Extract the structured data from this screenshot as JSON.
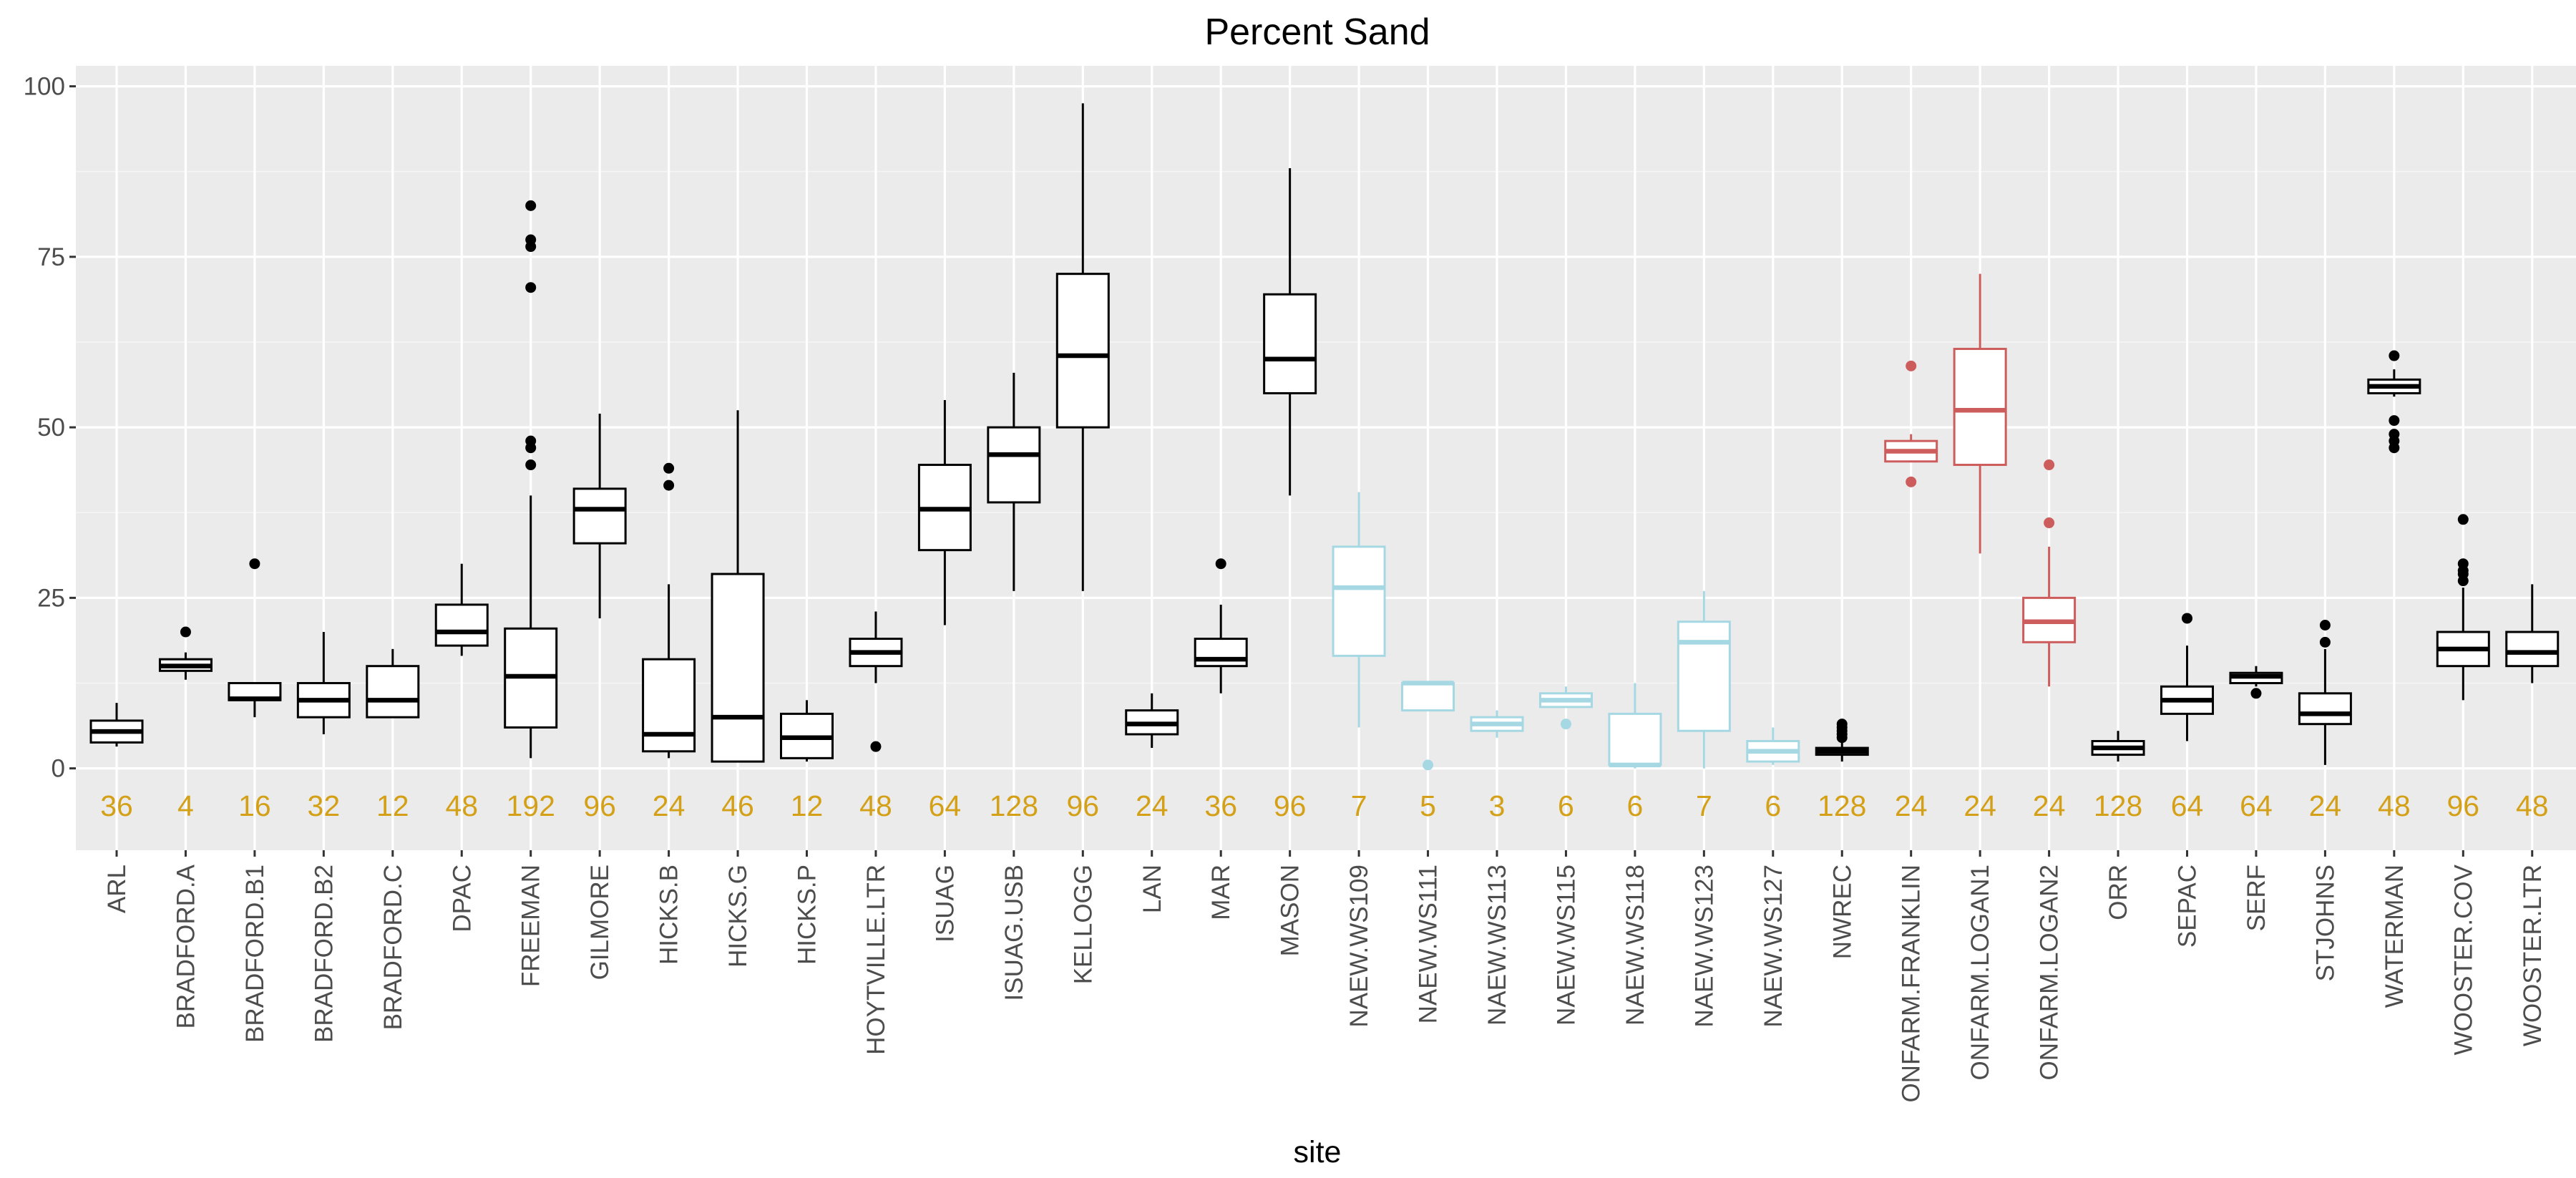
{
  "chart_data": {
    "type": "box",
    "title": "Percent Sand",
    "xlabel": "site",
    "ylabel": "",
    "ylim": [
      -12,
      103
    ],
    "yticks": [
      0,
      25,
      50,
      75,
      100
    ],
    "grid": true,
    "colors": {
      "panel": "#ebebeb",
      "grid_major": "#ffffff",
      "grid_minor": "#f5f5f5",
      "count_label": "#d4a017",
      "default": "#000000",
      "naew": "#a6d8e4",
      "onfarm": "#cd5c5c"
    },
    "boxes": [
      {
        "site": "ARL",
        "n": "36",
        "group": "default",
        "lower": 3.2,
        "q1": 3.8,
        "median": 5.4,
        "q3": 7.0,
        "upper": 9.6,
        "outliers": []
      },
      {
        "site": "BRADFORD.A",
        "n": "4",
        "group": "default",
        "lower": 13.0,
        "q1": 14.3,
        "median": 15.0,
        "q3": 16.0,
        "upper": 17.0,
        "outliers": [
          20.0
        ]
      },
      {
        "site": "BRADFORD.B1",
        "n": "16",
        "group": "default",
        "lower": 7.5,
        "q1": 10.0,
        "median": 10.2,
        "q3": 12.5,
        "upper": 12.5,
        "outliers": [
          30.0
        ]
      },
      {
        "site": "BRADFORD.B2",
        "n": "32",
        "group": "default",
        "lower": 5.0,
        "q1": 7.5,
        "median": 10.0,
        "q3": 12.5,
        "upper": 20.0,
        "outliers": []
      },
      {
        "site": "BRADFORD.C",
        "n": "12",
        "group": "default",
        "lower": 7.5,
        "q1": 7.5,
        "median": 10.0,
        "q3": 15.0,
        "upper": 17.5,
        "outliers": []
      },
      {
        "site": "DPAC",
        "n": "48",
        "group": "default",
        "lower": 16.5,
        "q1": 18.0,
        "median": 20.0,
        "q3": 24.0,
        "upper": 30.0,
        "outliers": []
      },
      {
        "site": "FREEMAN",
        "n": "192",
        "group": "default",
        "lower": 1.5,
        "q1": 6.0,
        "median": 13.5,
        "q3": 20.5,
        "upper": 40.0,
        "outliers": [
          44.5,
          47.0,
          48.0,
          70.5,
          76.5,
          77.5,
          82.5
        ]
      },
      {
        "site": "GILMORE",
        "n": "96",
        "group": "default",
        "lower": 22.0,
        "q1": 33.0,
        "median": 38.0,
        "q3": 41.0,
        "upper": 52.0,
        "outliers": []
      },
      {
        "site": "HICKS.B",
        "n": "24",
        "group": "default",
        "lower": 1.5,
        "q1": 2.5,
        "median": 5.0,
        "q3": 16.0,
        "upper": 27.0,
        "outliers": [
          41.5,
          44.0
        ]
      },
      {
        "site": "HICKS.G",
        "n": "46",
        "group": "default",
        "lower": 1.0,
        "q1": 1.0,
        "median": 7.5,
        "q3": 28.5,
        "upper": 52.5,
        "outliers": []
      },
      {
        "site": "HICKS.P",
        "n": "12",
        "group": "default",
        "lower": 1.0,
        "q1": 1.5,
        "median": 4.5,
        "q3": 8.0,
        "upper": 10.0,
        "outliers": []
      },
      {
        "site": "HOYTVILLE.LTR",
        "n": "48",
        "group": "default",
        "lower": 12.5,
        "q1": 15.0,
        "median": 17.0,
        "q3": 19.0,
        "upper": 23.0,
        "outliers": [
          3.2
        ]
      },
      {
        "site": "ISUAG",
        "n": "64",
        "group": "default",
        "lower": 21.0,
        "q1": 32.0,
        "median": 38.0,
        "q3": 44.5,
        "upper": 54.0,
        "outliers": []
      },
      {
        "site": "ISUAG.USB",
        "n": "128",
        "group": "default",
        "lower": 26.0,
        "q1": 39.0,
        "median": 46.0,
        "q3": 50.0,
        "upper": 58.0,
        "outliers": []
      },
      {
        "site": "KELLOGG",
        "n": "96",
        "group": "default",
        "lower": 26.0,
        "q1": 50.0,
        "median": 60.5,
        "q3": 72.5,
        "upper": 97.5,
        "outliers": []
      },
      {
        "site": "LAN",
        "n": "24",
        "group": "default",
        "lower": 3.0,
        "q1": 5.0,
        "median": 6.5,
        "q3": 8.5,
        "upper": 11.0,
        "outliers": []
      },
      {
        "site": "MAR",
        "n": "36",
        "group": "default",
        "lower": 11.0,
        "q1": 15.0,
        "median": 16.0,
        "q3": 19.0,
        "upper": 24.0,
        "outliers": [
          30.0
        ]
      },
      {
        "site": "MASON",
        "n": "96",
        "group": "default",
        "lower": 40.0,
        "q1": 55.0,
        "median": 60.0,
        "q3": 69.5,
        "upper": 88.0,
        "outliers": []
      },
      {
        "site": "NAEW.WS109",
        "n": "7",
        "group": "naew",
        "lower": 6.0,
        "q1": 16.5,
        "median": 26.5,
        "q3": 32.5,
        "upper": 40.5,
        "outliers": []
      },
      {
        "site": "NAEW.WS111",
        "n": "5",
        "group": "naew",
        "lower": 8.5,
        "q1": 8.5,
        "median": 12.5,
        "q3": 12.5,
        "upper": 12.5,
        "outliers": [
          0.5
        ]
      },
      {
        "site": "NAEW.WS113",
        "n": "3",
        "group": "naew",
        "lower": 4.5,
        "q1": 5.5,
        "median": 6.5,
        "q3": 7.5,
        "upper": 8.5,
        "outliers": []
      },
      {
        "site": "NAEW.WS115",
        "n": "6",
        "group": "naew",
        "lower": 9.0,
        "q1": 9.0,
        "median": 10.0,
        "q3": 11.0,
        "upper": 12.0,
        "outliers": [
          6.5
        ]
      },
      {
        "site": "NAEW.WS118",
        "n": "6",
        "group": "naew",
        "lower": 0.0,
        "q1": 0.5,
        "median": 0.5,
        "q3": 8.0,
        "upper": 12.5,
        "outliers": []
      },
      {
        "site": "NAEW.WS123",
        "n": "7",
        "group": "naew",
        "lower": 0.0,
        "q1": 5.5,
        "median": 18.5,
        "q3": 21.5,
        "upper": 26.0,
        "outliers": []
      },
      {
        "site": "NAEW.WS127",
        "n": "6",
        "group": "naew",
        "lower": 0.5,
        "q1": 1.0,
        "median": 2.5,
        "q3": 4.0,
        "upper": 6.0,
        "outliers": []
      },
      {
        "site": "NWREC",
        "n": "128",
        "group": "default",
        "lower": 1.0,
        "q1": 2.0,
        "median": 2.5,
        "q3": 3.0,
        "upper": 4.0,
        "outliers": [
          4.5,
          5.0,
          5.5,
          6.0,
          6.5
        ]
      },
      {
        "site": "ONFARM.FRANKLIN",
        "n": "24",
        "group": "onfarm",
        "lower": 45.0,
        "q1": 45.0,
        "median": 46.5,
        "q3": 48.0,
        "upper": 49.0,
        "outliers": [
          42.0,
          59.0
        ]
      },
      {
        "site": "ONFARM.LOGAN1",
        "n": "24",
        "group": "onfarm",
        "lower": 31.5,
        "q1": 44.5,
        "median": 52.5,
        "q3": 61.5,
        "upper": 72.5,
        "outliers": []
      },
      {
        "site": "ONFARM.LOGAN2",
        "n": "24",
        "group": "onfarm",
        "lower": 12.0,
        "q1": 18.5,
        "median": 21.5,
        "q3": 25.0,
        "upper": 32.5,
        "outliers": [
          36.0,
          44.5
        ]
      },
      {
        "site": "ORR",
        "n": "128",
        "group": "default",
        "lower": 1.0,
        "q1": 2.0,
        "median": 3.0,
        "q3": 4.0,
        "upper": 5.5,
        "outliers": []
      },
      {
        "site": "SEPAC",
        "n": "64",
        "group": "default",
        "lower": 4.0,
        "q1": 8.0,
        "median": 10.0,
        "q3": 12.0,
        "upper": 18.0,
        "outliers": [
          22.0
        ]
      },
      {
        "site": "SERF",
        "n": "64",
        "group": "default",
        "lower": 12.0,
        "q1": 12.5,
        "median": 13.5,
        "q3": 14.0,
        "upper": 15.0,
        "outliers": [
          11.0
        ]
      },
      {
        "site": "STJOHNS",
        "n": "24",
        "group": "default",
        "lower": 0.5,
        "q1": 6.5,
        "median": 8.0,
        "q3": 11.0,
        "upper": 17.5,
        "outliers": [
          18.5,
          21.0
        ]
      },
      {
        "site": "WATERMAN",
        "n": "48",
        "group": "default",
        "lower": 54.5,
        "q1": 55.0,
        "median": 56.0,
        "q3": 57.0,
        "upper": 58.5,
        "outliers": [
          47.0,
          48.0,
          49.0,
          51.0,
          60.5
        ]
      },
      {
        "site": "WOOSTER.COV",
        "n": "96",
        "group": "default",
        "lower": 10.0,
        "q1": 15.0,
        "median": 17.5,
        "q3": 20.0,
        "upper": 26.5,
        "outliers": [
          27.5,
          28.5,
          29.0,
          30.0,
          36.5
        ]
      },
      {
        "site": "WOOSTER.LTR",
        "n": "48",
        "group": "default",
        "lower": 12.5,
        "q1": 15.0,
        "median": 17.0,
        "q3": 20.0,
        "upper": 27.0,
        "outliers": []
      }
    ]
  }
}
